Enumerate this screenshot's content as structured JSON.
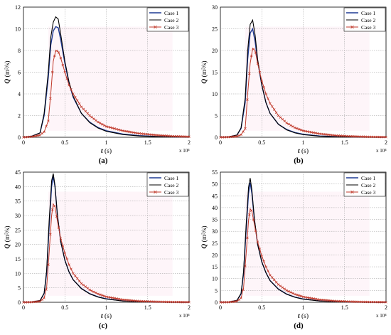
{
  "figure": {
    "panel_labels": [
      "(a)",
      "(b)",
      "(c)",
      "(d)"
    ],
    "xlabel_var": "t",
    "xlabel_unit": " (s)",
    "ylabel_var": "Q",
    "ylabel_unit": " (m³/s)",
    "x_multiplier": "x 10⁴",
    "colors": {
      "case1": "#1f3a93",
      "case2": "#000000",
      "case3": "#c0392b",
      "case3_marker": "#c0392b",
      "pink_band": "#f7c6e0"
    }
  },
  "chart_data": [
    {
      "type": "line",
      "panel": "(a)",
      "xlabel": "t (s)",
      "ylabel": "Q (m³/s)",
      "xlim": [
        0,
        2
      ],
      "ylim": [
        0,
        12
      ],
      "xticks": [
        "0",
        "0.5",
        "1",
        "1.5",
        "2"
      ],
      "yticks": [
        "0",
        "2",
        "4",
        "6",
        "8",
        "10",
        "12"
      ],
      "x_scale_label": "x 10⁴",
      "legend_position": "top-right",
      "grid": true,
      "x": [
        0,
        0.1,
        0.2,
        0.25,
        0.3,
        0.33,
        0.36,
        0.39,
        0.42,
        0.45,
        0.5,
        0.55,
        0.6,
        0.7,
        0.8,
        0.9,
        1.0,
        1.2,
        1.4,
        1.6,
        1.8,
        2.0
      ],
      "series": [
        {
          "name": "Case 1",
          "values": [
            0,
            0.1,
            0.4,
            2.0,
            5.5,
            8.5,
            9.8,
            10.2,
            10.1,
            9.0,
            6.8,
            5.0,
            3.7,
            2.2,
            1.4,
            0.9,
            0.6,
            0.3,
            0.15,
            0.08,
            0.04,
            0.02
          ]
        },
        {
          "name": "Case 2",
          "values": [
            0,
            0.1,
            0.4,
            2.2,
            6.0,
            9.2,
            10.6,
            11.1,
            10.9,
            9.5,
            7.0,
            5.1,
            3.8,
            2.2,
            1.35,
            0.85,
            0.55,
            0.25,
            0.12,
            0.06,
            0.03,
            0.01
          ]
        },
        {
          "name": "Case 3",
          "values": [
            0,
            0.05,
            0.2,
            0.5,
            1.5,
            4.0,
            7.0,
            8.0,
            7.9,
            7.3,
            6.0,
            4.8,
            4.0,
            2.8,
            2.0,
            1.4,
            1.0,
            0.6,
            0.35,
            0.2,
            0.1,
            0.05
          ]
        }
      ]
    },
    {
      "type": "line",
      "panel": "(b)",
      "xlabel": "t (s)",
      "ylabel": "Q (m³/s)",
      "xlim": [
        0,
        2
      ],
      "ylim": [
        0,
        30
      ],
      "xticks": [
        "0",
        "0.5",
        "1",
        "1.5",
        "2"
      ],
      "yticks": [
        "0",
        "5",
        "10",
        "15",
        "20",
        "25",
        "30"
      ],
      "x_scale_label": "x 10⁴",
      "legend_position": "top-right",
      "grid": true,
      "x": [
        0,
        0.1,
        0.2,
        0.25,
        0.3,
        0.33,
        0.36,
        0.39,
        0.42,
        0.45,
        0.5,
        0.55,
        0.6,
        0.7,
        0.8,
        0.9,
        1.0,
        1.2,
        1.4,
        1.6,
        1.8,
        2.0
      ],
      "series": [
        {
          "name": "Case 1",
          "values": [
            0,
            0.1,
            0.5,
            2.0,
            8.0,
            18.0,
            24.0,
            25.0,
            22.0,
            17.5,
            12.0,
            8.0,
            5.5,
            3.0,
            1.8,
            1.1,
            0.7,
            0.3,
            0.15,
            0.07,
            0.03,
            0.01
          ]
        },
        {
          "name": "Case 2",
          "values": [
            0,
            0.1,
            0.5,
            2.2,
            9.0,
            20.0,
            26.0,
            27.0,
            23.5,
            18.0,
            12.0,
            8.0,
            5.5,
            3.0,
            1.7,
            1.0,
            0.6,
            0.25,
            0.1,
            0.05,
            0.02,
            0.01
          ]
        },
        {
          "name": "Case 3",
          "values": [
            0,
            0.05,
            0.2,
            0.6,
            2.0,
            10.0,
            17.0,
            20.5,
            20.0,
            17.0,
            13.0,
            10.0,
            7.8,
            5.0,
            3.3,
            2.2,
            1.5,
            0.8,
            0.4,
            0.2,
            0.1,
            0.05
          ]
        }
      ]
    },
    {
      "type": "line",
      "panel": "(c)",
      "xlabel": "t (s)",
      "ylabel": "Q (m³/s)",
      "xlim": [
        0,
        2
      ],
      "ylim": [
        0,
        45
      ],
      "xticks": [
        "0",
        "0.5",
        "1",
        "1.5",
        "2"
      ],
      "yticks": [
        "0",
        "5",
        "10",
        "15",
        "20",
        "25",
        "30",
        "35",
        "40",
        "45"
      ],
      "x_scale_label": "x 10⁴",
      "legend_position": "top-right",
      "grid": true,
      "x": [
        0,
        0.1,
        0.2,
        0.25,
        0.28,
        0.31,
        0.34,
        0.36,
        0.38,
        0.41,
        0.45,
        0.5,
        0.55,
        0.6,
        0.7,
        0.8,
        0.9,
        1.0,
        1.2,
        1.4,
        1.6,
        1.8,
        2.0
      ],
      "series": [
        {
          "name": "Case 1",
          "values": [
            0,
            0.1,
            0.6,
            3.0,
            10.0,
            26.0,
            40.0,
            43.5,
            40.0,
            30.0,
            21.0,
            14.5,
            10.5,
            7.8,
            4.8,
            3.0,
            1.9,
            1.2,
            0.5,
            0.2,
            0.08,
            0.03,
            0.01
          ]
        },
        {
          "name": "Case 2",
          "values": [
            0,
            0.1,
            0.6,
            3.2,
            11.0,
            28.0,
            42.0,
            44.5,
            40.5,
            30.0,
            21.0,
            14.5,
            10.5,
            7.8,
            4.7,
            2.9,
            1.8,
            1.1,
            0.45,
            0.18,
            0.07,
            0.03,
            0.01
          ]
        },
        {
          "name": "Case 3",
          "values": [
            0,
            0.05,
            0.3,
            1.5,
            5.0,
            17.0,
            30.0,
            34.0,
            33.0,
            28.0,
            22.0,
            17.0,
            13.0,
            10.0,
            6.5,
            4.3,
            2.9,
            1.9,
            0.9,
            0.4,
            0.2,
            0.1,
            0.05
          ]
        }
      ]
    },
    {
      "type": "line",
      "panel": "(d)",
      "xlabel": "t (s)",
      "ylabel": "Q (m³/s)",
      "xlim": [
        0,
        2
      ],
      "ylim": [
        0,
        55
      ],
      "xticks": [
        "0",
        "0.5",
        "1",
        "1.5",
        "2"
      ],
      "yticks": [
        "0",
        "5",
        "10",
        "15",
        "20",
        "25",
        "30",
        "35",
        "40",
        "45",
        "50",
        "55"
      ],
      "x_scale_label": "x 10⁴",
      "legend_position": "top-right",
      "grid": true,
      "x": [
        0,
        0.1,
        0.2,
        0.25,
        0.28,
        0.31,
        0.34,
        0.36,
        0.38,
        0.41,
        0.45,
        0.5,
        0.55,
        0.6,
        0.7,
        0.8,
        0.9,
        1.0,
        1.2,
        1.4,
        1.6,
        1.8,
        2.0
      ],
      "series": [
        {
          "name": "Case 1",
          "values": [
            0,
            0.1,
            0.8,
            3.5,
            12.0,
            30.0,
            46.0,
            50.5,
            46.0,
            35.0,
            24.5,
            17.0,
            12.5,
            9.2,
            5.6,
            3.5,
            2.2,
            1.4,
            0.6,
            0.25,
            0.1,
            0.04,
            0.01
          ]
        },
        {
          "name": "Case 2",
          "values": [
            0,
            0.1,
            0.8,
            3.8,
            13.0,
            32.0,
            48.5,
            52.5,
            47.5,
            35.5,
            24.5,
            17.0,
            12.5,
            9.1,
            5.5,
            3.4,
            2.1,
            1.3,
            0.55,
            0.22,
            0.09,
            0.03,
            0.01
          ]
        },
        {
          "name": "Case 3",
          "values": [
            0,
            0.05,
            0.4,
            1.8,
            6.0,
            20.0,
            34.5,
            39.5,
            38.5,
            33.0,
            25.5,
            19.5,
            15.0,
            11.5,
            7.5,
            5.0,
            3.4,
            2.3,
            1.1,
            0.5,
            0.25,
            0.12,
            0.05
          ]
        }
      ]
    }
  ]
}
